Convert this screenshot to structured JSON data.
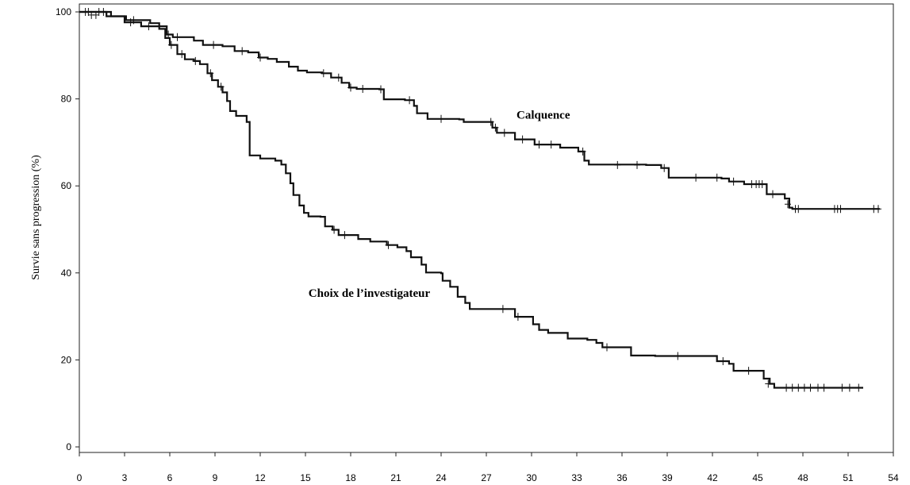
{
  "chart_data": {
    "type": "line",
    "title": "",
    "xlabel": "",
    "ylabel": "Survie sans progression (%)",
    "xlim": [
      0,
      54
    ],
    "ylim": [
      0,
      100
    ],
    "xticks": [
      "0",
      "3",
      "6",
      "9",
      "12",
      "15",
      "18",
      "21",
      "24",
      "27",
      "30",
      "33",
      "36",
      "39",
      "42",
      "45",
      "48",
      "51",
      "54"
    ],
    "yticks": [
      "0",
      "20",
      "40",
      "60",
      "80",
      "100"
    ],
    "grid": false,
    "line_color": "#111111",
    "series": [
      {
        "name": "Calquence",
        "label_at": [
          29,
          75.5
        ],
        "points": [
          [
            0,
            100
          ],
          [
            2.1,
            100
          ],
          [
            2.1,
            99
          ],
          [
            3,
            99
          ],
          [
            3,
            97.6
          ],
          [
            4.1,
            97.6
          ],
          [
            4.1,
            96.7
          ],
          [
            5.5,
            96.7
          ],
          [
            5.8,
            94.8
          ],
          [
            6.2,
            94.2
          ],
          [
            7.6,
            93.4
          ],
          [
            8.2,
            92.4
          ],
          [
            9.5,
            92.1
          ],
          [
            10.3,
            91
          ],
          [
            11.2,
            90.7
          ],
          [
            11.9,
            89.5
          ],
          [
            12.5,
            89.2
          ],
          [
            13.1,
            88.5
          ],
          [
            13.9,
            87.4
          ],
          [
            14.5,
            86.5
          ],
          [
            15.1,
            86.1
          ],
          [
            16.1,
            85.9
          ],
          [
            16.7,
            84.9
          ],
          [
            17.4,
            83.7
          ],
          [
            17.9,
            82.6
          ],
          [
            18.4,
            82.3
          ],
          [
            19.9,
            82.2
          ],
          [
            20.2,
            79.9
          ],
          [
            21.6,
            79.7
          ],
          [
            22.2,
            78.4
          ],
          [
            22.4,
            76.7
          ],
          [
            23.1,
            75.4
          ],
          [
            25.2,
            75.3
          ],
          [
            25.5,
            74.7
          ],
          [
            27.2,
            74.7
          ],
          [
            27.4,
            73.4
          ],
          [
            27.7,
            72.2
          ],
          [
            28.9,
            70.7
          ],
          [
            30.2,
            69.5
          ],
          [
            31.9,
            68.8
          ],
          [
            33.1,
            67.9
          ],
          [
            33.5,
            65.8
          ],
          [
            33.8,
            64.9
          ],
          [
            37.6,
            64.8
          ],
          [
            38.6,
            64.1
          ],
          [
            39.1,
            61.9
          ],
          [
            42.6,
            61.7
          ],
          [
            43.1,
            61
          ],
          [
            44.1,
            60.4
          ],
          [
            45.4,
            60.4
          ],
          [
            45.6,
            58.1
          ],
          [
            46.6,
            58.1
          ],
          [
            46.8,
            57.1
          ],
          [
            47.1,
            55
          ],
          [
            47.3,
            54.7
          ],
          [
            53.1,
            54.7
          ]
        ],
        "censored": [
          [
            0.6,
            100
          ],
          [
            1.1,
            99.3
          ],
          [
            1.6,
            100
          ],
          [
            3.4,
            97.6
          ],
          [
            4.6,
            96.7
          ],
          [
            5.9,
            94.8
          ],
          [
            6.5,
            94.2
          ],
          [
            8.9,
            92.4
          ],
          [
            10.8,
            91
          ],
          [
            12,
            89.5
          ],
          [
            16.2,
            85.9
          ],
          [
            17.2,
            84.9
          ],
          [
            18,
            82.6
          ],
          [
            18.8,
            82.3
          ],
          [
            20,
            82.2
          ],
          [
            21.9,
            79.7
          ],
          [
            24,
            75.4
          ],
          [
            27.3,
            74.7
          ],
          [
            27.6,
            73.4
          ],
          [
            28.2,
            72.2
          ],
          [
            29.4,
            70.7
          ],
          [
            30.5,
            69.5
          ],
          [
            31.3,
            69.5
          ],
          [
            33.4,
            67.9
          ],
          [
            35.7,
            64.8
          ],
          [
            37,
            64.8
          ],
          [
            38.8,
            64.1
          ],
          [
            40.9,
            61.9
          ],
          [
            42.3,
            61.9
          ],
          [
            43.4,
            61
          ],
          [
            44.6,
            60.4
          ],
          [
            44.9,
            60.4
          ],
          [
            45.1,
            60.4
          ],
          [
            45.3,
            60.4
          ],
          [
            46,
            58.1
          ],
          [
            47,
            55.8
          ],
          [
            47.5,
            54.7
          ],
          [
            47.7,
            54.7
          ],
          [
            50.1,
            54.7
          ],
          [
            50.3,
            54.7
          ],
          [
            50.5,
            54.7
          ],
          [
            52.7,
            54.7
          ],
          [
            53,
            54.7
          ]
        ]
      },
      {
        "name": "Choix de l’investigateur",
        "label_at": [
          15.2,
          34.5
        ],
        "points": [
          [
            0,
            100
          ],
          [
            1.8,
            100
          ],
          [
            1.8,
            99
          ],
          [
            2.9,
            99
          ],
          [
            3.1,
            98.1
          ],
          [
            4.7,
            97.4
          ],
          [
            5.3,
            96.1
          ],
          [
            5.7,
            94
          ],
          [
            6,
            92.4
          ],
          [
            6.5,
            90.3
          ],
          [
            7,
            89.1
          ],
          [
            7.6,
            88.7
          ],
          [
            8,
            88
          ],
          [
            8.5,
            85.9
          ],
          [
            8.8,
            84.3
          ],
          [
            9.2,
            82.8
          ],
          [
            9.5,
            81.5
          ],
          [
            9.8,
            79.5
          ],
          [
            10,
            77.2
          ],
          [
            10.4,
            76.1
          ],
          [
            11.1,
            74.7
          ],
          [
            11.3,
            67
          ],
          [
            12,
            66.3
          ],
          [
            13,
            65.8
          ],
          [
            13.4,
            64.9
          ],
          [
            13.7,
            62.9
          ],
          [
            14,
            60.6
          ],
          [
            14.2,
            57.9
          ],
          [
            14.6,
            55.5
          ],
          [
            14.9,
            53.8
          ],
          [
            15.2,
            53
          ],
          [
            16,
            52.9
          ],
          [
            16.3,
            50.7
          ],
          [
            16.8,
            49.9
          ],
          [
            17.2,
            48.7
          ],
          [
            18.3,
            48.7
          ],
          [
            18.5,
            47.8
          ],
          [
            19.3,
            47.2
          ],
          [
            20.4,
            46.4
          ],
          [
            21.1,
            45.9
          ],
          [
            21.7,
            45
          ],
          [
            22,
            43.6
          ],
          [
            22.7,
            41.9
          ],
          [
            23,
            40.1
          ],
          [
            24,
            39.9
          ],
          [
            24.1,
            38.2
          ],
          [
            24.6,
            36.8
          ],
          [
            25.1,
            34.5
          ],
          [
            25.6,
            33.1
          ],
          [
            25.9,
            31.7
          ],
          [
            28.7,
            31.7
          ],
          [
            28.9,
            29.9
          ],
          [
            29.9,
            29.9
          ],
          [
            30.1,
            28.2
          ],
          [
            30.5,
            26.9
          ],
          [
            31.1,
            26.2
          ],
          [
            32.4,
            24.9
          ],
          [
            33.7,
            24.6
          ],
          [
            34.3,
            23.9
          ],
          [
            34.7,
            22.9
          ],
          [
            36.2,
            22.9
          ],
          [
            36.6,
            21
          ],
          [
            38.2,
            20.9
          ],
          [
            42.1,
            20.9
          ],
          [
            42.3,
            19.7
          ],
          [
            43.1,
            19.1
          ],
          [
            43.4,
            17.5
          ],
          [
            45.2,
            17.5
          ],
          [
            45.4,
            15.7
          ],
          [
            45.8,
            14.5
          ],
          [
            46.1,
            13.6
          ],
          [
            52,
            13.6
          ]
        ],
        "censored": [
          [
            0.4,
            100
          ],
          [
            0.8,
            99.3
          ],
          [
            1.3,
            100
          ],
          [
            3.6,
            98.1
          ],
          [
            6.1,
            92.4
          ],
          [
            6.8,
            90.3
          ],
          [
            7.7,
            88.7
          ],
          [
            8.7,
            85.9
          ],
          [
            9.4,
            82.8
          ],
          [
            16.9,
            49.9
          ],
          [
            17.6,
            48.7
          ],
          [
            20.5,
            46.4
          ],
          [
            28.1,
            31.7
          ],
          [
            29.1,
            29.9
          ],
          [
            35,
            22.9
          ],
          [
            39.7,
            20.9
          ],
          [
            42.7,
            19.7
          ],
          [
            44.4,
            17.5
          ],
          [
            45.7,
            14.5
          ],
          [
            46.9,
            13.6
          ],
          [
            47.3,
            13.6
          ],
          [
            47.7,
            13.6
          ],
          [
            48.1,
            13.6
          ],
          [
            48.5,
            13.6
          ],
          [
            49,
            13.6
          ],
          [
            49.4,
            13.6
          ],
          [
            50.6,
            13.6
          ],
          [
            51.1,
            13.6
          ],
          [
            51.7,
            13.6
          ]
        ]
      }
    ]
  }
}
